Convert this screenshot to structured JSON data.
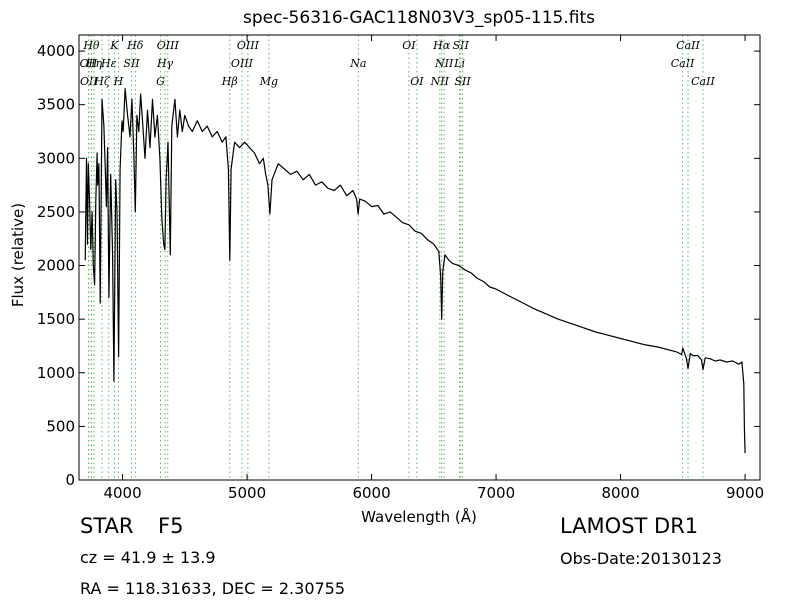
{
  "chart_data": {
    "type": "line",
    "title": "spec-56316-GAC118N03V3_sp05-115.fits",
    "xlabel": "Wavelength (Å)",
    "ylabel": "Flux (relative)",
    "xlim": [
      3650,
      9120
    ],
    "ylim": [
      0,
      4150
    ],
    "xticks": [
      4000,
      5000,
      6000,
      7000,
      8000,
      9000
    ],
    "yticks": [
      0,
      500,
      1000,
      1500,
      2000,
      2500,
      3000,
      3500,
      4000
    ],
    "grid": false,
    "line_color": "#000000",
    "marker_color": "#55bb55",
    "series": [
      {
        "values": [
          [
            3700,
            2050
          ],
          [
            3710,
            3000
          ],
          [
            3718,
            2200
          ],
          [
            3725,
            2950
          ],
          [
            3735,
            2600
          ],
          [
            3745,
            2150
          ],
          [
            3755,
            2500
          ],
          [
            3765,
            2000
          ],
          [
            3775,
            1820
          ],
          [
            3785,
            2600
          ],
          [
            3795,
            3050
          ],
          [
            3800,
            2750
          ],
          [
            3810,
            2950
          ],
          [
            3820,
            1650
          ],
          [
            3835,
            3550
          ],
          [
            3850,
            3300
          ],
          [
            3860,
            2950
          ],
          [
            3870,
            2550
          ],
          [
            3880,
            3100
          ],
          [
            3890,
            1700
          ],
          [
            3905,
            2850
          ],
          [
            3920,
            2100
          ],
          [
            3930,
            920
          ],
          [
            3945,
            2800
          ],
          [
            3955,
            2500
          ],
          [
            3968,
            1150
          ],
          [
            3980,
            2900
          ],
          [
            3995,
            3350
          ],
          [
            4005,
            3250
          ],
          [
            4020,
            3650
          ],
          [
            4040,
            3400
          ],
          [
            4060,
            3200
          ],
          [
            4075,
            3550
          ],
          [
            4090,
            3050
          ],
          [
            4102,
            2500
          ],
          [
            4115,
            3400
          ],
          [
            4130,
            3250
          ],
          [
            4145,
            3600
          ],
          [
            4160,
            3350
          ],
          [
            4180,
            3000
          ],
          [
            4200,
            3450
          ],
          [
            4220,
            3100
          ],
          [
            4240,
            3550
          ],
          [
            4260,
            3200
          ],
          [
            4280,
            3400
          ],
          [
            4300,
            3000
          ],
          [
            4315,
            2450
          ],
          [
            4330,
            2200
          ],
          [
            4340,
            2150
          ],
          [
            4350,
            2800
          ],
          [
            4365,
            3150
          ],
          [
            4383,
            2100
          ],
          [
            4395,
            3300
          ],
          [
            4420,
            3550
          ],
          [
            4440,
            3200
          ],
          [
            4460,
            3450
          ],
          [
            4480,
            3250
          ],
          [
            4500,
            3400
          ],
          [
            4530,
            3300
          ],
          [
            4560,
            3250
          ],
          [
            4600,
            3350
          ],
          [
            4640,
            3250
          ],
          [
            4680,
            3300
          ],
          [
            4720,
            3200
          ],
          [
            4760,
            3250
          ],
          [
            4800,
            3150
          ],
          [
            4830,
            3200
          ],
          [
            4850,
            2900
          ],
          [
            4861,
            2050
          ],
          [
            4872,
            2900
          ],
          [
            4900,
            3150
          ],
          [
            4940,
            3100
          ],
          [
            4980,
            3150
          ],
          [
            5020,
            3100
          ],
          [
            5060,
            3050
          ],
          [
            5100,
            2950
          ],
          [
            5130,
            3000
          ],
          [
            5150,
            2850
          ],
          [
            5167,
            2750
          ],
          [
            5183,
            2480
          ],
          [
            5200,
            2800
          ],
          [
            5250,
            2950
          ],
          [
            5300,
            2900
          ],
          [
            5350,
            2850
          ],
          [
            5400,
            2880
          ],
          [
            5450,
            2800
          ],
          [
            5500,
            2850
          ],
          [
            5550,
            2750
          ],
          [
            5600,
            2780
          ],
          [
            5650,
            2720
          ],
          [
            5700,
            2700
          ],
          [
            5750,
            2750
          ],
          [
            5800,
            2650
          ],
          [
            5850,
            2700
          ],
          [
            5880,
            2620
          ],
          [
            5892,
            2480
          ],
          [
            5905,
            2620
          ],
          [
            5950,
            2600
          ],
          [
            6000,
            2550
          ],
          [
            6050,
            2560
          ],
          [
            6100,
            2480
          ],
          [
            6150,
            2500
          ],
          [
            6200,
            2450
          ],
          [
            6250,
            2400
          ],
          [
            6300,
            2380
          ],
          [
            6350,
            2320
          ],
          [
            6400,
            2300
          ],
          [
            6450,
            2240
          ],
          [
            6500,
            2200
          ],
          [
            6540,
            2130
          ],
          [
            6555,
            1900
          ],
          [
            6563,
            1500
          ],
          [
            6572,
            1950
          ],
          [
            6590,
            2100
          ],
          [
            6620,
            2050
          ],
          [
            6650,
            2020
          ],
          [
            6700,
            2000
          ],
          [
            6750,
            1960
          ],
          [
            6800,
            1930
          ],
          [
            6850,
            1880
          ],
          [
            6900,
            1850
          ],
          [
            6950,
            1800
          ],
          [
            7000,
            1780
          ],
          [
            7100,
            1720
          ],
          [
            7200,
            1660
          ],
          [
            7300,
            1600
          ],
          [
            7400,
            1550
          ],
          [
            7500,
            1500
          ],
          [
            7600,
            1460
          ],
          [
            7700,
            1420
          ],
          [
            7800,
            1380
          ],
          [
            7900,
            1350
          ],
          [
            8000,
            1320
          ],
          [
            8100,
            1290
          ],
          [
            8200,
            1260
          ],
          [
            8300,
            1240
          ],
          [
            8400,
            1210
          ],
          [
            8450,
            1195
          ],
          [
            8490,
            1170
          ],
          [
            8500,
            1230
          ],
          [
            8530,
            1130
          ],
          [
            8542,
            1040
          ],
          [
            8560,
            1180
          ],
          [
            8580,
            1160
          ],
          [
            8620,
            1160
          ],
          [
            8650,
            1120
          ],
          [
            8662,
            1030
          ],
          [
            8680,
            1140
          ],
          [
            8720,
            1130
          ],
          [
            8760,
            1110
          ],
          [
            8800,
            1120
          ],
          [
            8850,
            1100
          ],
          [
            8900,
            1110
          ],
          [
            8950,
            1080
          ],
          [
            8975,
            1100
          ],
          [
            8990,
            900
          ],
          [
            8995,
            480
          ],
          [
            9000,
            250
          ]
        ]
      }
    ],
    "lines": [
      {
        "x": 3726,
        "label": "OII",
        "row": 1
      },
      {
        "x": 3729,
        "label": "OII",
        "row": 2
      },
      {
        "x": 3750,
        "label": "Hθ",
        "row": 0
      },
      {
        "x": 3771,
        "label": "Hη",
        "row": 1
      },
      {
        "x": 3835,
        "label": "Hζ",
        "row": 2
      },
      {
        "x": 3889,
        "label": "Hε",
        "row": 1
      },
      {
        "x": 3934,
        "label": "K",
        "row": 0
      },
      {
        "x": 3967,
        "label": "H",
        "row": 2
      },
      {
        "x": 4072,
        "label": "SII",
        "row": 1
      },
      {
        "x": 4102,
        "label": "Hδ",
        "row": 0
      },
      {
        "x": 4305,
        "label": "G",
        "row": 2
      },
      {
        "x": 4341,
        "label": "Hγ",
        "row": 1
      },
      {
        "x": 4363,
        "label": "OIII",
        "row": 0
      },
      {
        "x": 4861,
        "label": "Hβ",
        "row": 2
      },
      {
        "x": 4959,
        "label": "OIII",
        "row": 1
      },
      {
        "x": 5007,
        "label": "OIII",
        "row": 0
      },
      {
        "x": 5175,
        "label": "Mg",
        "row": 2
      },
      {
        "x": 5894,
        "label": "Na",
        "row": 1
      },
      {
        "x": 6300,
        "label": "OI",
        "row": 0
      },
      {
        "x": 6364,
        "label": "OI",
        "row": 2
      },
      {
        "x": 6548,
        "label": "NII",
        "row": 2
      },
      {
        "x": 6563,
        "label": "Hα",
        "row": 0
      },
      {
        "x": 6583,
        "label": "NII",
        "row": 1
      },
      {
        "x": 6707,
        "label": "Li",
        "row": 1
      },
      {
        "x": 6716,
        "label": "SII",
        "row": 0
      },
      {
        "x": 6731,
        "label": "SII",
        "row": 2
      },
      {
        "x": 8498,
        "label": "CaII",
        "row": 1
      },
      {
        "x": 8542,
        "label": "CaII",
        "row": 0
      },
      {
        "x": 8662,
        "label": "CaII",
        "row": 2
      }
    ]
  },
  "info": {
    "object_class": "STAR",
    "subclass": "F5",
    "cz": "cz = 41.9 ± 13.9",
    "coords": "RA = 118.31633, DEC = 2.30755",
    "release": "LAMOST DR1",
    "obs_date": "Obs-Date:20130123"
  }
}
